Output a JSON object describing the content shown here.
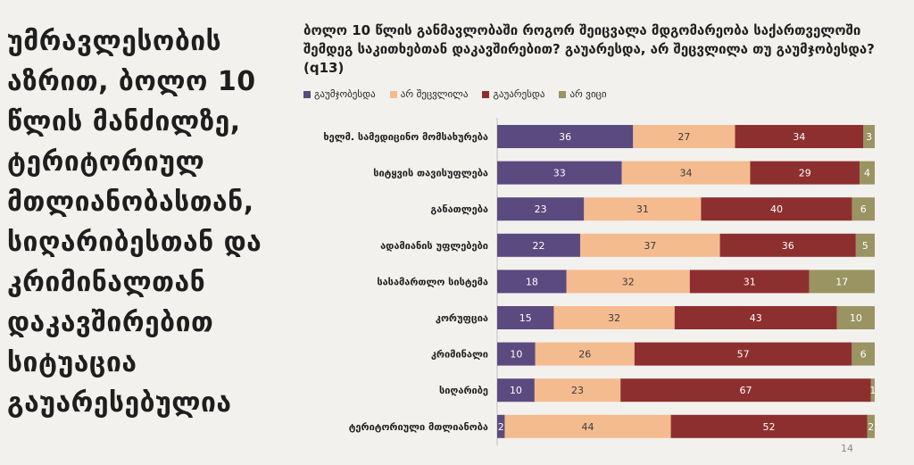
{
  "left_text": {
    "lines": [
      "უმრავლესობის",
      "აზრით, ბოლო 10",
      "წლის მანძილზე,",
      "ტერიტორიულ",
      "მთლიანობასთან,",
      "სიღარიბესთან და",
      "კრიმინალთან",
      "დაკავშირებით",
      "სიტუაცია",
      "გაუარესებულია"
    ]
  },
  "colors": {
    "improved": "#5b4a7f",
    "not_changed": "#f4bb8f",
    "worsened": "#8e2f2f",
    "dont_know": "#9a9462",
    "background": "#f3f1ee"
  },
  "slide_number": "14",
  "chart_data": {
    "type": "bar",
    "orientation": "horizontal",
    "stacked": true,
    "title": "ბოლო 10 წლის განმავლობაში როგორ შეიცვალა მდგომარეობა საქართველოში შემდეგ საკითხებთან დაკავშირებით? გაუარესდა, არ შეცვლილა თუ გაუმჯობესდა? (q13)",
    "xlim": [
      0,
      100
    ],
    "legend_position": "top-left",
    "categories": [
      "ხელმ. სამედიცინო მომსახურება",
      "სიტყვის თავისუფლება",
      "განათლება",
      "ადამიანის უფლებები",
      "სასამართლო სისტემა",
      "კორუფცია",
      "კრიმინალი",
      "სიღარიბე",
      "ტერიტორიული მთლიანობა"
    ],
    "series": [
      {
        "name": "გაუმჯობესდა",
        "values": [
          36,
          33,
          23,
          22,
          18,
          15,
          10,
          10,
          2
        ]
      },
      {
        "name": "არ შეცვლილა",
        "values": [
          27,
          34,
          31,
          37,
          32,
          32,
          26,
          23,
          44
        ]
      },
      {
        "name": "გაუარესდა",
        "values": [
          34,
          29,
          40,
          36,
          31,
          43,
          57,
          67,
          52
        ]
      },
      {
        "name": "არ ვიცი",
        "values": [
          3,
          4,
          6,
          5,
          17,
          10,
          6,
          1,
          2
        ]
      }
    ]
  }
}
